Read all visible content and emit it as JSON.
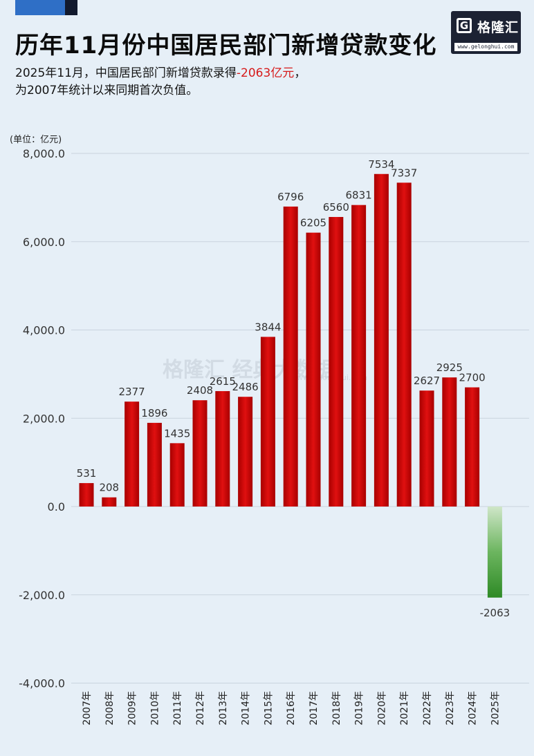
{
  "title": "历年11月份中国居民部门新增贷款变化",
  "subtitle": {
    "line1_prefix": "2025年11月，中国居民部门新增贷款录得",
    "line1_highlight": "-2063亿元",
    "line1_suffix": "，",
    "line2": "为2007年统计以来同期首次负值。"
  },
  "logo": {
    "name": "格隆汇",
    "url": "www.gelonghui.com",
    "icon": "g-logo-icon"
  },
  "watermark": {
    "text": "格隆汇  经典大数据",
    "url": "www.gelonghui.com"
  },
  "colors": {
    "positive_bar": "#cc0000",
    "negative_bar": "#2e8a26",
    "highlight": "#d61a1a",
    "background": "#e6eff7"
  },
  "chart_data": {
    "type": "bar",
    "ylabel": "(单位：亿元)",
    "ylim": [
      -4000,
      8000
    ],
    "yticks": [
      8000,
      6000,
      4000,
      2000,
      0,
      -2000,
      -4000
    ],
    "ytick_labels": [
      "8,000.0",
      "6,000.0",
      "4,000.0",
      "2,000.0",
      "0.0",
      "-2,000.0",
      "-4,000.0"
    ],
    "grid": true,
    "categories": [
      "2007年",
      "2008年",
      "2009年",
      "2010年",
      "2011年",
      "2012年",
      "2013年",
      "2014年",
      "2015年",
      "2016年",
      "2017年",
      "2018年",
      "2019年",
      "2020年",
      "2021年",
      "2022年",
      "2023年",
      "2024年",
      "2025年"
    ],
    "values": [
      531,
      208,
      2377,
      1896,
      1435,
      2408,
      2615,
      2486,
      3844,
      6796,
      6205,
      6560,
      6831,
      7534,
      7337,
      2627,
      2925,
      2700,
      -2063
    ],
    "data_labels": [
      "531",
      "208",
      "2377",
      "1896",
      "1435",
      "2408",
      "2615",
      "2486",
      "3844",
      "6796",
      "6205",
      "6560",
      "6831",
      "7534",
      "7337",
      "2627",
      "2925",
      "2700",
      "-2063"
    ]
  }
}
